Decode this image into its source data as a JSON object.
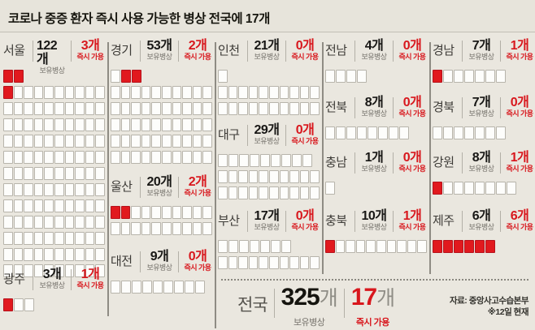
{
  "title": "코로나 중증 환자 즉시 사용 가능한 병상 전국에 17개",
  "labels": {
    "held": "보유병상",
    "available": "즉시 가용"
  },
  "colors": {
    "background": "#eae7df",
    "available_red": "#e1191e",
    "bed_white": "#fdfdfb",
    "bed_border": "#b7b4ab",
    "divider_gray": "#8f8c84"
  },
  "national": {
    "name": "전국",
    "total_value": "325",
    "total_unit": "개",
    "total_label": "보유병상",
    "avail_value": "17",
    "avail_unit": "개",
    "avail_label": "즉시 가용"
  },
  "source": {
    "line1": "자료: 중앙사고수습본부",
    "line2": "※12일 현재"
  },
  "regions": [
    {
      "id": "seoul",
      "name": "서울",
      "total_label": "122개",
      "avail_label": "3개",
      "rows": [
        2,
        10,
        10,
        10,
        10,
        10,
        10,
        10,
        10,
        10,
        10,
        10,
        10
      ],
      "reds": [
        0,
        1,
        2
      ]
    },
    {
      "id": "gwangju",
      "name": "광주",
      "total_label": "3개",
      "avail_label": "1개",
      "rows": [
        3
      ],
      "reds": [
        0
      ]
    },
    {
      "id": "gyeonggi",
      "name": "경기",
      "total_label": "53개",
      "avail_label": "2개",
      "rows": [
        3,
        10,
        10,
        10,
        10,
        10
      ],
      "reds": [
        1,
        2
      ]
    },
    {
      "id": "ulsan",
      "name": "울산",
      "total_label": "20개",
      "avail_label": "2개",
      "rows": [
        10,
        10
      ],
      "reds": [
        0,
        1
      ]
    },
    {
      "id": "daejeon",
      "name": "대전",
      "total_label": "9개",
      "avail_label": "0개",
      "rows": [
        9
      ],
      "reds": []
    },
    {
      "id": "incheon",
      "name": "인천",
      "total_label": "21개",
      "avail_label": "0개",
      "rows": [
        1,
        10,
        10
      ],
      "reds": []
    },
    {
      "id": "daegu",
      "name": "대구",
      "total_label": "29개",
      "avail_label": "0개",
      "rows": [
        9,
        10,
        10
      ],
      "reds": []
    },
    {
      "id": "busan",
      "name": "부산",
      "total_label": "17개",
      "avail_label": "0개",
      "rows": [
        7,
        10
      ],
      "reds": []
    },
    {
      "id": "jeonnam",
      "name": "전남",
      "total_label": "4개",
      "avail_label": "0개",
      "rows": [
        4
      ],
      "reds": []
    },
    {
      "id": "jeonbuk",
      "name": "전북",
      "total_label": "8개",
      "avail_label": "0개",
      "rows": [
        8
      ],
      "reds": []
    },
    {
      "id": "chungnam",
      "name": "충남",
      "total_label": "1개",
      "avail_label": "0개",
      "rows": [
        1
      ],
      "reds": []
    },
    {
      "id": "chungbuk",
      "name": "충북",
      "total_label": "10개",
      "avail_label": "1개",
      "rows": [
        10
      ],
      "reds": [
        0
      ]
    },
    {
      "id": "gyeongnam",
      "name": "경남",
      "total_label": "7개",
      "avail_label": "1개",
      "rows": [
        7
      ],
      "reds": [
        0
      ]
    },
    {
      "id": "gyeongbuk",
      "name": "경북",
      "total_label": "7개",
      "avail_label": "0개",
      "rows": [
        7
      ],
      "reds": []
    },
    {
      "id": "gangwon",
      "name": "강원",
      "total_label": "8개",
      "avail_label": "1개",
      "rows": [
        8
      ],
      "reds": [
        0
      ]
    },
    {
      "id": "jeju",
      "name": "제주",
      "total_label": "6개",
      "avail_label": "6개",
      "rows": [
        6
      ],
      "reds": [
        0,
        1,
        2,
        3,
        4,
        5
      ]
    }
  ],
  "chart_data": {
    "type": "waffle",
    "title": "코로나 중증 환자 즉시 사용 가능한 병상 전국에 17개",
    "categories": [
      "서울",
      "광주",
      "경기",
      "울산",
      "대전",
      "인천",
      "대구",
      "부산",
      "전남",
      "전북",
      "충남",
      "충북",
      "경남",
      "경북",
      "강원",
      "제주",
      "전국"
    ],
    "series": [
      {
        "name": "보유병상",
        "values": [
          122,
          3,
          53,
          20,
          9,
          21,
          29,
          17,
          4,
          8,
          1,
          10,
          7,
          7,
          8,
          6,
          325
        ]
      },
      {
        "name": "즉시 가용",
        "values": [
          3,
          1,
          2,
          2,
          0,
          0,
          0,
          0,
          0,
          0,
          0,
          1,
          1,
          0,
          1,
          6,
          17
        ]
      }
    ],
    "legend_position": "none",
    "grid": false,
    "note": "자료: 중앙사고수습본부 ※12일 현재"
  }
}
